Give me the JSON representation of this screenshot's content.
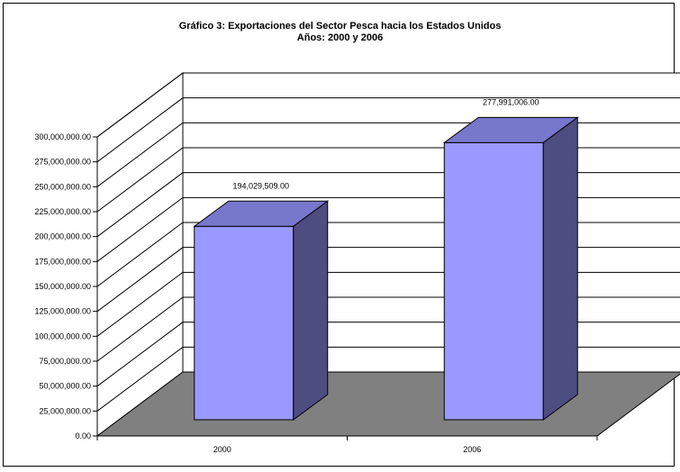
{
  "chart_data": {
    "type": "bar",
    "title": "Gráfico 3:  Exportaciones del Sector Pesca hacia los Estados Unidos",
    "subtitle": "Años:  2000 y 2006",
    "categories": [
      "2000",
      "2006"
    ],
    "values": [
      194029509,
      277991006
    ],
    "data_labels": [
      "194,029,509.00",
      "277,991,006.00"
    ],
    "ylim": [
      0,
      300000000
    ],
    "y_ticks": [
      0,
      25000000,
      50000000,
      75000000,
      100000000,
      125000000,
      150000000,
      175000000,
      200000000,
      225000000,
      250000000,
      275000000,
      300000000
    ],
    "y_tick_labels": [
      "0.00",
      "25,000,000.00",
      "50,000,000.00",
      "75,000,000.00",
      "100,000,000.00",
      "125,000,000.00",
      "150,000,000.00",
      "175,000,000.00",
      "200,000,000.00",
      "225,000,000.00",
      "250,000,000.00",
      "275,000,000.00",
      "300,000,000.00"
    ],
    "grid": true,
    "legend": "none",
    "colors": {
      "bar_front": "#9999ff",
      "bar_top": "#7777cc",
      "bar_side": "#4d4d80",
      "floor": "#808080",
      "wall": "#ffffff"
    }
  }
}
